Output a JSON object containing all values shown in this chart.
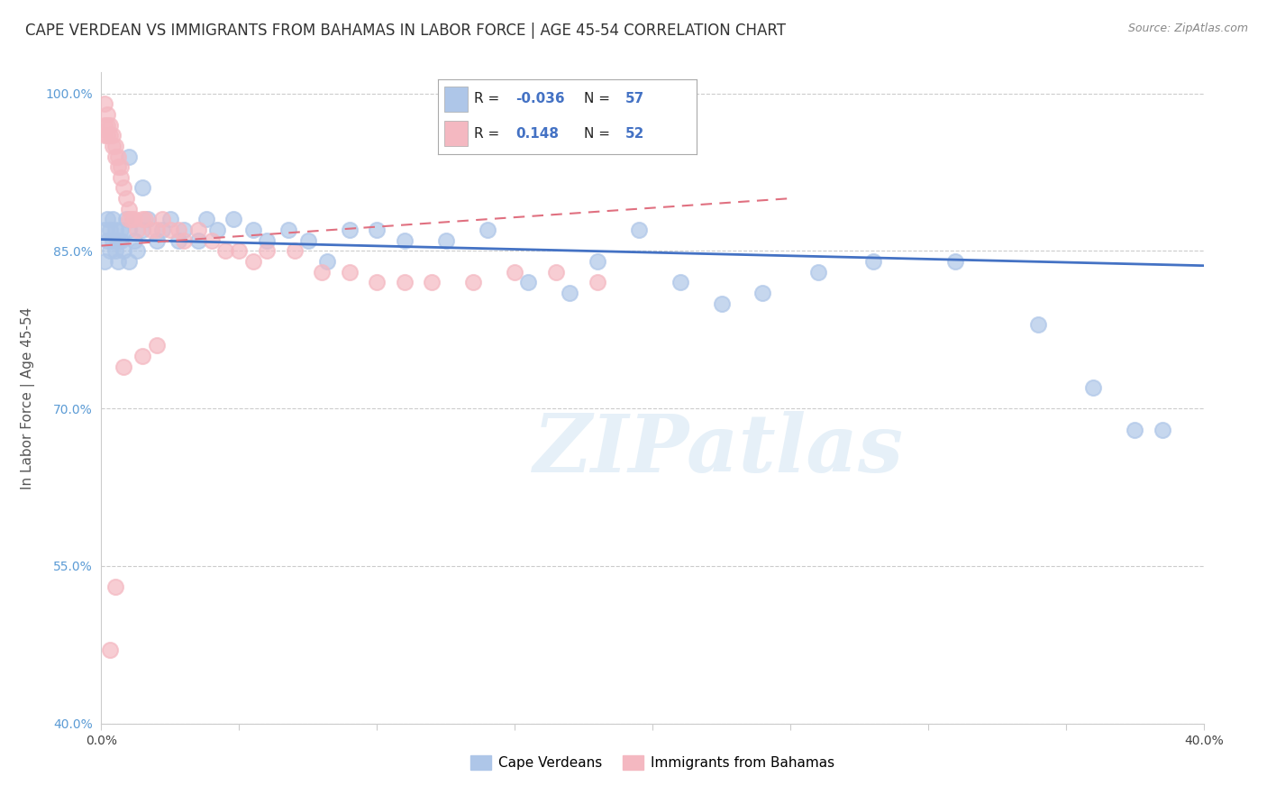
{
  "title": "CAPE VERDEAN VS IMMIGRANTS FROM BAHAMAS IN LABOR FORCE | AGE 45-54 CORRELATION CHART",
  "source": "Source: ZipAtlas.com",
  "ylabel": "In Labor Force | Age 45-54",
  "xlim": [
    0.0,
    0.4
  ],
  "ylim": [
    0.4,
    1.02
  ],
  "yticks": [
    0.4,
    0.55,
    0.7,
    0.85,
    1.0
  ],
  "ytick_labels": [
    "40.0%",
    "55.0%",
    "70.0%",
    "85.0%",
    "100.0%"
  ],
  "xticks": [
    0.0,
    0.05,
    0.1,
    0.15,
    0.2,
    0.25,
    0.3,
    0.35,
    0.4
  ],
  "xtick_labels": [
    "0.0%",
    "",
    "",
    "",
    "",
    "",
    "",
    "",
    "40.0%"
  ],
  "legend_entries": [
    {
      "label": "Cape Verdeans",
      "color": "#aec6e8",
      "R": "-0.036",
      "N": "57"
    },
    {
      "label": "Immigrants from Bahamas",
      "color": "#f4b8c1",
      "R": "0.148",
      "N": "52"
    }
  ],
  "blue_scatter_x": [
    0.001,
    0.001,
    0.002,
    0.002,
    0.003,
    0.003,
    0.004,
    0.004,
    0.005,
    0.005,
    0.006,
    0.006,
    0.007,
    0.007,
    0.008,
    0.009,
    0.01,
    0.01,
    0.012,
    0.013,
    0.015,
    0.017,
    0.02,
    0.022,
    0.025,
    0.028,
    0.03,
    0.035,
    0.038,
    0.042,
    0.048,
    0.055,
    0.06,
    0.068,
    0.075,
    0.082,
    0.09,
    0.1,
    0.11,
    0.125,
    0.14,
    0.155,
    0.17,
    0.18,
    0.195,
    0.21,
    0.225,
    0.24,
    0.26,
    0.28,
    0.31,
    0.34,
    0.36,
    0.375,
    0.385,
    0.01,
    0.015
  ],
  "blue_scatter_y": [
    0.87,
    0.84,
    0.86,
    0.88,
    0.87,
    0.85,
    0.86,
    0.88,
    0.85,
    0.87,
    0.86,
    0.84,
    0.87,
    0.86,
    0.85,
    0.88,
    0.87,
    0.84,
    0.86,
    0.85,
    0.87,
    0.88,
    0.86,
    0.87,
    0.88,
    0.86,
    0.87,
    0.86,
    0.88,
    0.87,
    0.88,
    0.87,
    0.86,
    0.87,
    0.86,
    0.84,
    0.87,
    0.87,
    0.86,
    0.86,
    0.87,
    0.82,
    0.81,
    0.84,
    0.87,
    0.82,
    0.8,
    0.81,
    0.83,
    0.84,
    0.84,
    0.78,
    0.72,
    0.68,
    0.68,
    0.94,
    0.91
  ],
  "pink_scatter_x": [
    0.001,
    0.001,
    0.001,
    0.002,
    0.002,
    0.002,
    0.003,
    0.003,
    0.004,
    0.004,
    0.005,
    0.005,
    0.006,
    0.006,
    0.007,
    0.007,
    0.008,
    0.009,
    0.01,
    0.01,
    0.011,
    0.012,
    0.013,
    0.015,
    0.016,
    0.018,
    0.02,
    0.022,
    0.025,
    0.028,
    0.03,
    0.035,
    0.04,
    0.045,
    0.05,
    0.055,
    0.06,
    0.07,
    0.08,
    0.09,
    0.1,
    0.11,
    0.12,
    0.135,
    0.15,
    0.165,
    0.18,
    0.02,
    0.015,
    0.008,
    0.005,
    0.003
  ],
  "pink_scatter_y": [
    0.99,
    0.97,
    0.96,
    0.98,
    0.97,
    0.96,
    0.97,
    0.96,
    0.96,
    0.95,
    0.95,
    0.94,
    0.94,
    0.93,
    0.93,
    0.92,
    0.91,
    0.9,
    0.89,
    0.88,
    0.88,
    0.88,
    0.87,
    0.88,
    0.88,
    0.87,
    0.87,
    0.88,
    0.87,
    0.87,
    0.86,
    0.87,
    0.86,
    0.85,
    0.85,
    0.84,
    0.85,
    0.85,
    0.83,
    0.83,
    0.82,
    0.82,
    0.82,
    0.82,
    0.83,
    0.83,
    0.82,
    0.76,
    0.75,
    0.74,
    0.53,
    0.47
  ],
  "blue_line_x": [
    0.0,
    0.4
  ],
  "blue_line_y": [
    0.861,
    0.836
  ],
  "pink_line_x": [
    0.0,
    0.25
  ],
  "pink_line_y": [
    0.855,
    0.9
  ],
  "watermark_text": "ZIPatlas",
  "background_color": "#ffffff",
  "grid_color": "#cccccc",
  "blue_color": "#aec6e8",
  "pink_color": "#f4b8c1",
  "blue_line_color": "#4472c4",
  "pink_line_color": "#e07080",
  "title_fontsize": 12,
  "axis_fontsize": 11,
  "tick_fontsize": 10
}
